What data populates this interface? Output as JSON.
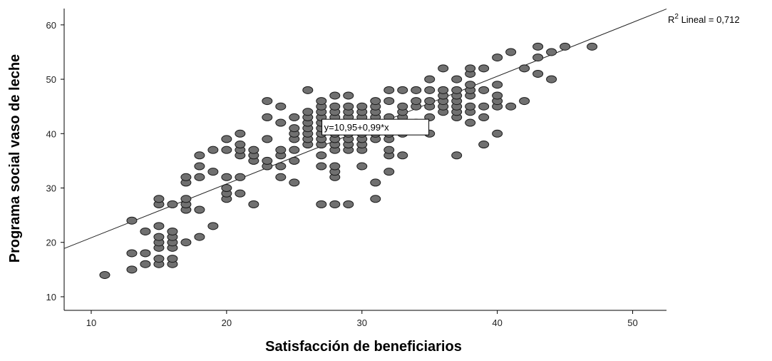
{
  "chart_data": {
    "type": "scatter",
    "xlabel": "Satisfacción de beneficiarios",
    "ylabel": "Programa social vaso de leche",
    "xlim": [
      8,
      52.5
    ],
    "ylim": [
      7.5,
      63
    ],
    "x_ticks": [
      10,
      20,
      30,
      40,
      50
    ],
    "y_ticks": [
      10,
      20,
      30,
      40,
      50,
      60
    ],
    "grid": false,
    "marker_color": "#707070",
    "marker_edge_color": "#1a1a1a",
    "fit_line": {
      "intercept": 10.95,
      "slope": 0.99,
      "equation_label": "y=10,95+0,99*x",
      "r2_prefix": "R",
      "r2_superscript": "2",
      "r2_text": " Lineal = 0,712"
    },
    "points": [
      [
        11,
        14
      ],
      [
        13,
        15
      ],
      [
        13,
        18
      ],
      [
        13,
        24
      ],
      [
        14,
        16
      ],
      [
        14,
        18
      ],
      [
        14,
        22
      ],
      [
        15,
        16
      ],
      [
        15,
        17
      ],
      [
        15,
        19
      ],
      [
        15,
        20
      ],
      [
        15,
        21
      ],
      [
        15,
        23
      ],
      [
        15,
        27
      ],
      [
        15,
        28
      ],
      [
        16,
        16
      ],
      [
        16,
        17
      ],
      [
        16,
        19
      ],
      [
        16,
        20
      ],
      [
        16,
        21
      ],
      [
        16,
        22
      ],
      [
        16,
        27
      ],
      [
        17,
        20
      ],
      [
        17,
        26
      ],
      [
        17,
        27
      ],
      [
        17,
        28
      ],
      [
        17,
        31
      ],
      [
        17,
        32
      ],
      [
        18,
        21
      ],
      [
        18,
        26
      ],
      [
        18,
        32
      ],
      [
        18,
        34
      ],
      [
        18,
        36
      ],
      [
        19,
        23
      ],
      [
        19,
        33
      ],
      [
        19,
        37
      ],
      [
        20,
        28
      ],
      [
        20,
        29
      ],
      [
        20,
        30
      ],
      [
        20,
        32
      ],
      [
        20,
        37
      ],
      [
        20,
        39
      ],
      [
        21,
        29
      ],
      [
        21,
        32
      ],
      [
        21,
        36
      ],
      [
        21,
        37
      ],
      [
        21,
        38
      ],
      [
        21,
        40
      ],
      [
        22,
        27
      ],
      [
        22,
        35
      ],
      [
        22,
        36
      ],
      [
        22,
        37
      ],
      [
        23,
        34
      ],
      [
        23,
        35
      ],
      [
        23,
        39
      ],
      [
        23,
        43
      ],
      [
        23,
        46
      ],
      [
        24,
        32
      ],
      [
        24,
        34
      ],
      [
        24,
        36
      ],
      [
        24,
        37
      ],
      [
        24,
        42
      ],
      [
        24,
        45
      ],
      [
        25,
        31
      ],
      [
        25,
        35
      ],
      [
        25,
        37
      ],
      [
        25,
        39
      ],
      [
        25,
        40
      ],
      [
        25,
        41
      ],
      [
        25,
        43
      ],
      [
        26,
        38
      ],
      [
        26,
        39
      ],
      [
        26,
        40
      ],
      [
        26,
        41
      ],
      [
        26,
        42
      ],
      [
        26,
        43
      ],
      [
        26,
        44
      ],
      [
        26,
        48
      ],
      [
        27,
        27
      ],
      [
        27,
        34
      ],
      [
        27,
        36
      ],
      [
        27,
        38
      ],
      [
        27,
        39
      ],
      [
        27,
        40
      ],
      [
        27,
        41
      ],
      [
        27,
        42
      ],
      [
        27,
        43
      ],
      [
        27,
        44
      ],
      [
        27,
        45
      ],
      [
        27,
        46
      ],
      [
        28,
        27
      ],
      [
        28,
        32
      ],
      [
        28,
        33
      ],
      [
        28,
        34
      ],
      [
        28,
        37
      ],
      [
        28,
        38
      ],
      [
        28,
        39
      ],
      [
        28,
        40
      ],
      [
        28,
        41
      ],
      [
        28,
        42
      ],
      [
        28,
        43
      ],
      [
        28,
        44
      ],
      [
        28,
        45
      ],
      [
        28,
        47
      ],
      [
        29,
        27
      ],
      [
        29,
        37
      ],
      [
        29,
        38
      ],
      [
        29,
        39
      ],
      [
        29,
        40
      ],
      [
        29,
        41
      ],
      [
        29,
        42
      ],
      [
        29,
        43
      ],
      [
        29,
        44
      ],
      [
        29,
        45
      ],
      [
        29,
        47
      ],
      [
        30,
        34
      ],
      [
        30,
        37
      ],
      [
        30,
        38
      ],
      [
        30,
        39
      ],
      [
        30,
        40
      ],
      [
        30,
        41
      ],
      [
        30,
        42
      ],
      [
        30,
        43
      ],
      [
        30,
        44
      ],
      [
        30,
        45
      ],
      [
        31,
        28
      ],
      [
        31,
        31
      ],
      [
        31,
        39
      ],
      [
        31,
        40
      ],
      [
        31,
        41
      ],
      [
        31,
        42
      ],
      [
        31,
        43
      ],
      [
        31,
        44
      ],
      [
        31,
        45
      ],
      [
        31,
        46
      ],
      [
        32,
        33
      ],
      [
        32,
        36
      ],
      [
        32,
        37
      ],
      [
        32,
        39
      ],
      [
        32,
        40
      ],
      [
        32,
        41
      ],
      [
        32,
        42
      ],
      [
        32,
        43
      ],
      [
        32,
        46
      ],
      [
        32,
        48
      ],
      [
        33,
        36
      ],
      [
        33,
        40
      ],
      [
        33,
        41
      ],
      [
        33,
        42
      ],
      [
        33,
        43
      ],
      [
        33,
        44
      ],
      [
        33,
        45
      ],
      [
        33,
        48
      ],
      [
        34,
        42
      ],
      [
        34,
        45
      ],
      [
        34,
        46
      ],
      [
        34,
        48
      ],
      [
        35,
        40
      ],
      [
        35,
        43
      ],
      [
        35,
        45
      ],
      [
        35,
        46
      ],
      [
        35,
        48
      ],
      [
        35,
        50
      ],
      [
        36,
        44
      ],
      [
        36,
        45
      ],
      [
        36,
        46
      ],
      [
        36,
        47
      ],
      [
        36,
        48
      ],
      [
        36,
        52
      ],
      [
        37,
        36
      ],
      [
        37,
        43
      ],
      [
        37,
        44
      ],
      [
        37,
        45
      ],
      [
        37,
        46
      ],
      [
        37,
        47
      ],
      [
        37,
        48
      ],
      [
        37,
        50
      ],
      [
        38,
        42
      ],
      [
        38,
        44
      ],
      [
        38,
        45
      ],
      [
        38,
        47
      ],
      [
        38,
        48
      ],
      [
        38,
        49
      ],
      [
        38,
        51
      ],
      [
        38,
        52
      ],
      [
        39,
        38
      ],
      [
        39,
        43
      ],
      [
        39,
        45
      ],
      [
        39,
        48
      ],
      [
        39,
        52
      ],
      [
        40,
        40
      ],
      [
        40,
        45
      ],
      [
        40,
        46
      ],
      [
        40,
        47
      ],
      [
        40,
        49
      ],
      [
        40,
        54
      ],
      [
        41,
        45
      ],
      [
        41,
        55
      ],
      [
        42,
        46
      ],
      [
        42,
        52
      ],
      [
        43,
        51
      ],
      [
        43,
        54
      ],
      [
        43,
        56
      ],
      [
        44,
        50
      ],
      [
        44,
        55
      ],
      [
        45,
        56
      ],
      [
        47,
        56
      ]
    ]
  }
}
